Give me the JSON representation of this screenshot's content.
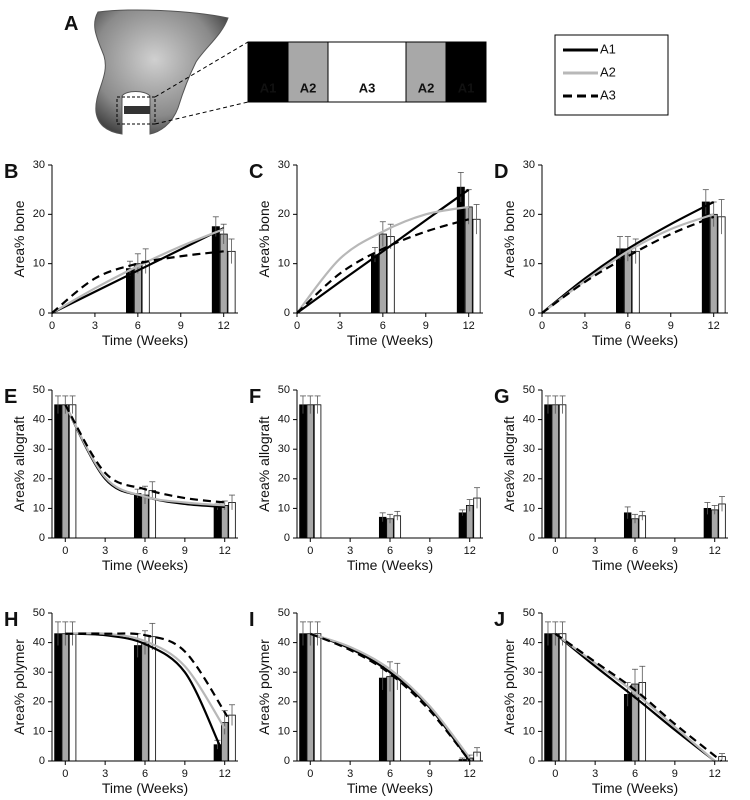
{
  "diagram": {
    "label": "A",
    "segments": [
      "A1",
      "A2",
      "A3",
      "A2",
      "A1"
    ]
  },
  "legend": [
    {
      "name": "A1",
      "bar_color": "#000000",
      "line_color": "#000000",
      "style": "solid"
    },
    {
      "name": "A2",
      "bar_color": "#a8a8a8",
      "line_color": "#b8b8b8",
      "style": "solid"
    },
    {
      "name": "A3",
      "bar_color": "#ffffff",
      "line_color": "#000000",
      "style": "dashed"
    }
  ],
  "chart_data": [
    {
      "type": "bar",
      "panel": "B",
      "ylabel": "Area% bone",
      "xlabel": "Time (Weeks)",
      "xlim": [
        0,
        13
      ],
      "xticks": [
        0,
        3,
        6,
        9,
        12
      ],
      "ylim": [
        0,
        30
      ],
      "yticks": [
        0,
        10,
        20,
        30
      ],
      "x": [
        6,
        12
      ],
      "series": [
        {
          "values": [
            9,
            17.5
          ],
          "errors": [
            1.5,
            2
          ]
        },
        {
          "values": [
            10,
            16
          ],
          "errors": [
            2,
            2
          ]
        },
        {
          "values": [
            10.5,
            12.5
          ],
          "errors": [
            2.5,
            2.5
          ]
        }
      ],
      "fits": [
        {
          "x": [
            0,
            3,
            6,
            9,
            12
          ],
          "values": [
            0,
            4.3,
            8.6,
            12.9,
            17.2
          ]
        },
        {
          "x": [
            0,
            3,
            6,
            9,
            12
          ],
          "values": [
            0,
            5,
            9.5,
            13.5,
            17
          ]
        },
        {
          "x": [
            0,
            3,
            6,
            9,
            12
          ],
          "values": [
            0,
            7,
            10,
            11.5,
            12.5
          ]
        }
      ]
    },
    {
      "type": "bar",
      "panel": "C",
      "ylabel": "Area% bone",
      "xlabel": "Time (Weeks)",
      "xlim": [
        0,
        13
      ],
      "xticks": [
        0,
        3,
        6,
        9,
        12
      ],
      "ylim": [
        0,
        30
      ],
      "yticks": [
        0,
        10,
        20,
        30
      ],
      "x": [
        6,
        12
      ],
      "series": [
        {
          "values": [
            11.8,
            25.5
          ],
          "errors": [
            1.5,
            3
          ]
        },
        {
          "values": [
            16,
            21.5
          ],
          "errors": [
            2.5,
            3.5
          ]
        },
        {
          "values": [
            15.5,
            19
          ],
          "errors": [
            2.5,
            3
          ]
        }
      ],
      "fits": [
        {
          "x": [
            0,
            3,
            6,
            9,
            12
          ],
          "values": [
            0,
            6.3,
            12.5,
            18.8,
            25
          ]
        },
        {
          "x": [
            0,
            3,
            6,
            9,
            12
          ],
          "values": [
            0,
            11,
            16.5,
            20,
            21.5
          ]
        },
        {
          "x": [
            0,
            3,
            6,
            9,
            12
          ],
          "values": [
            0,
            8,
            13,
            16.5,
            19
          ]
        }
      ]
    },
    {
      "type": "bar",
      "panel": "D",
      "ylabel": "Area% bone",
      "xlabel": "Time (Weeks)",
      "xlim": [
        0,
        13
      ],
      "xticks": [
        0,
        3,
        6,
        9,
        12
      ],
      "ylim": [
        0,
        30
      ],
      "yticks": [
        0,
        10,
        20,
        30
      ],
      "x": [
        6,
        12
      ],
      "series": [
        {
          "values": [
            13,
            22.5
          ],
          "errors": [
            2.5,
            2.5
          ]
        },
        {
          "values": [
            13,
            20
          ],
          "errors": [
            2.5,
            2.5
          ]
        },
        {
          "values": [
            12.5,
            19.5
          ],
          "errors": [
            2.5,
            3.5
          ]
        }
      ],
      "fits": [
        {
          "x": [
            0,
            3,
            6,
            9,
            12
          ],
          "values": [
            0,
            7,
            13,
            18,
            22.5
          ]
        },
        {
          "x": [
            0,
            3,
            6,
            9,
            12
          ],
          "values": [
            0,
            6.5,
            12.5,
            17,
            20
          ]
        },
        {
          "x": [
            0,
            3,
            6,
            9,
            12
          ],
          "values": [
            0,
            6.3,
            11.5,
            16,
            19.5
          ]
        }
      ]
    },
    {
      "type": "bar",
      "panel": "E",
      "ylabel": "Area% allograft",
      "xlabel": "Time (Weeks)",
      "xlim": [
        -1,
        13
      ],
      "xticks": [
        0,
        3,
        6,
        9,
        12
      ],
      "ylim": [
        0,
        50
      ],
      "yticks": [
        0,
        10,
        20,
        30,
        40,
        50
      ],
      "x": [
        0,
        6,
        12
      ],
      "series": [
        {
          "values": [
            45,
            15,
            10.5
          ],
          "errors": [
            3,
            1.5,
            1
          ]
        },
        {
          "values": [
            45,
            14.5,
            11
          ],
          "errors": [
            3,
            3,
            1.5
          ]
        },
        {
          "values": [
            45,
            16,
            12
          ],
          "errors": [
            3,
            3,
            2.5
          ]
        }
      ],
      "fits": [
        {
          "x": [
            0,
            3,
            6,
            9,
            12
          ],
          "values": [
            45,
            20,
            14,
            11.5,
            10.5
          ]
        },
        {
          "x": [
            0,
            3,
            6,
            9,
            12
          ],
          "values": [
            45,
            20.5,
            14,
            12,
            11
          ]
        },
        {
          "x": [
            0,
            3,
            6,
            9,
            12
          ],
          "values": [
            45,
            22,
            16.5,
            13.5,
            12
          ]
        }
      ]
    },
    {
      "type": "bar",
      "panel": "F",
      "ylabel": "Area% allograft",
      "xlabel": "Time (Weeks)",
      "xlim": [
        -1,
        13
      ],
      "xticks": [
        0,
        3,
        6,
        9,
        12
      ],
      "ylim": [
        0,
        50
      ],
      "yticks": [
        0,
        10,
        20,
        30,
        40,
        50
      ],
      "x": [
        0,
        6,
        12
      ],
      "series": [
        {
          "values": [
            45,
            7,
            8.5
          ],
          "errors": [
            3,
            1.5,
            1
          ]
        },
        {
          "values": [
            45,
            6.5,
            11
          ],
          "errors": [
            3,
            1.5,
            2
          ]
        },
        {
          "values": [
            45,
            7.5,
            13.5
          ],
          "errors": [
            3,
            1.5,
            3.5
          ]
        }
      ]
    },
    {
      "type": "bar",
      "panel": "G",
      "ylabel": "Area% allograft",
      "xlabel": "Time (Weeks)",
      "xlim": [
        -1,
        13
      ],
      "xticks": [
        0,
        3,
        6,
        9,
        12
      ],
      "ylim": [
        0,
        50
      ],
      "yticks": [
        0,
        10,
        20,
        30,
        40,
        50
      ],
      "x": [
        0,
        6,
        12
      ],
      "series": [
        {
          "values": [
            45,
            8.5,
            10
          ],
          "errors": [
            3,
            2,
            2
          ]
        },
        {
          "values": [
            45,
            6.5,
            9.5
          ],
          "errors": [
            3,
            1.5,
            1.5
          ]
        },
        {
          "values": [
            45,
            7.5,
            11.5
          ],
          "errors": [
            3,
            1.5,
            2.5
          ]
        }
      ]
    },
    {
      "type": "bar",
      "panel": "H",
      "ylabel": "Area% polymer",
      "xlabel": "Time (Weeks)",
      "xlim": [
        -1,
        13
      ],
      "xticks": [
        0,
        3,
        6,
        9,
        12
      ],
      "ylim": [
        0,
        50
      ],
      "yticks": [
        0,
        10,
        20,
        30,
        40,
        50
      ],
      "x": [
        0,
        6,
        12
      ],
      "series": [
        {
          "values": [
            43,
            39,
            5.5
          ],
          "errors": [
            4,
            4,
            1.5
          ]
        },
        {
          "values": [
            43,
            40,
            13
          ],
          "errors": [
            4,
            4,
            4
          ]
        },
        {
          "values": [
            43,
            42,
            15.5
          ],
          "errors": [
            4,
            4.5,
            3.5
          ]
        }
      ],
      "fits": [
        {
          "x": [
            0,
            3,
            6,
            9,
            11.6
          ],
          "values": [
            43,
            42.5,
            39.5,
            30,
            5.5
          ]
        },
        {
          "x": [
            0,
            3,
            6,
            9,
            12
          ],
          "values": [
            43,
            43,
            40.5,
            32,
            11
          ]
        },
        {
          "x": [
            0,
            3,
            6,
            9,
            12.2
          ],
          "values": [
            43,
            43,
            42.5,
            37,
            15
          ]
        }
      ]
    },
    {
      "type": "bar",
      "panel": "I",
      "ylabel": "Area% polymer",
      "xlabel": "Time (Weeks)",
      "xlim": [
        -1,
        13
      ],
      "xticks": [
        0,
        3,
        6,
        9,
        12
      ],
      "ylim": [
        0,
        50
      ],
      "yticks": [
        0,
        10,
        20,
        30,
        40,
        50
      ],
      "x": [
        0,
        6,
        12
      ],
      "series": [
        {
          "values": [
            43,
            28,
            0.5
          ],
          "errors": [
            4,
            4,
            0.5
          ]
        },
        {
          "values": [
            43,
            28.5,
            1
          ],
          "errors": [
            4,
            5,
            1
          ]
        },
        {
          "values": [
            43,
            28.5,
            3
          ],
          "errors": [
            4,
            4.5,
            1.5
          ]
        }
      ],
      "fits": [
        {
          "x": [
            0,
            3,
            6,
            9,
            12
          ],
          "values": [
            43,
            38,
            30,
            18,
            0
          ]
        },
        {
          "x": [
            0,
            3,
            6,
            9,
            12
          ],
          "values": [
            43,
            38.5,
            31,
            18.5,
            1
          ]
        },
        {
          "x": [
            0,
            3,
            6,
            9,
            12
          ],
          "values": [
            43,
            37.5,
            29.5,
            17,
            0
          ]
        }
      ]
    },
    {
      "type": "bar",
      "panel": "J",
      "ylabel": "Area% polymer",
      "xlabel": "Time (Weeks)",
      "xlim": [
        -1,
        13
      ],
      "xticks": [
        0,
        3,
        6,
        9,
        12
      ],
      "ylim": [
        0,
        50
      ],
      "yticks": [
        0,
        10,
        20,
        30,
        40,
        50
      ],
      "x": [
        0,
        6,
        12
      ],
      "series": [
        {
          "values": [
            43,
            22.5,
            0
          ],
          "errors": [
            4,
            4,
            0
          ]
        },
        {
          "values": [
            43,
            26,
            0
          ],
          "errors": [
            4,
            5,
            0
          ]
        },
        {
          "values": [
            43,
            26.5,
            1.5
          ],
          "errors": [
            4,
            5.5,
            1
          ]
        }
      ],
      "fits": [
        {
          "x": [
            0,
            3,
            6,
            9,
            12
          ],
          "values": [
            43,
            32,
            21.5,
            10.5,
            0
          ]
        },
        {
          "x": [
            0,
            3,
            6,
            9,
            12
          ],
          "values": [
            43,
            33,
            23,
            11.5,
            0
          ]
        },
        {
          "x": [
            0,
            3,
            6,
            9,
            12.5
          ],
          "values": [
            43,
            33.5,
            24,
            12.5,
            0
          ]
        }
      ]
    }
  ]
}
